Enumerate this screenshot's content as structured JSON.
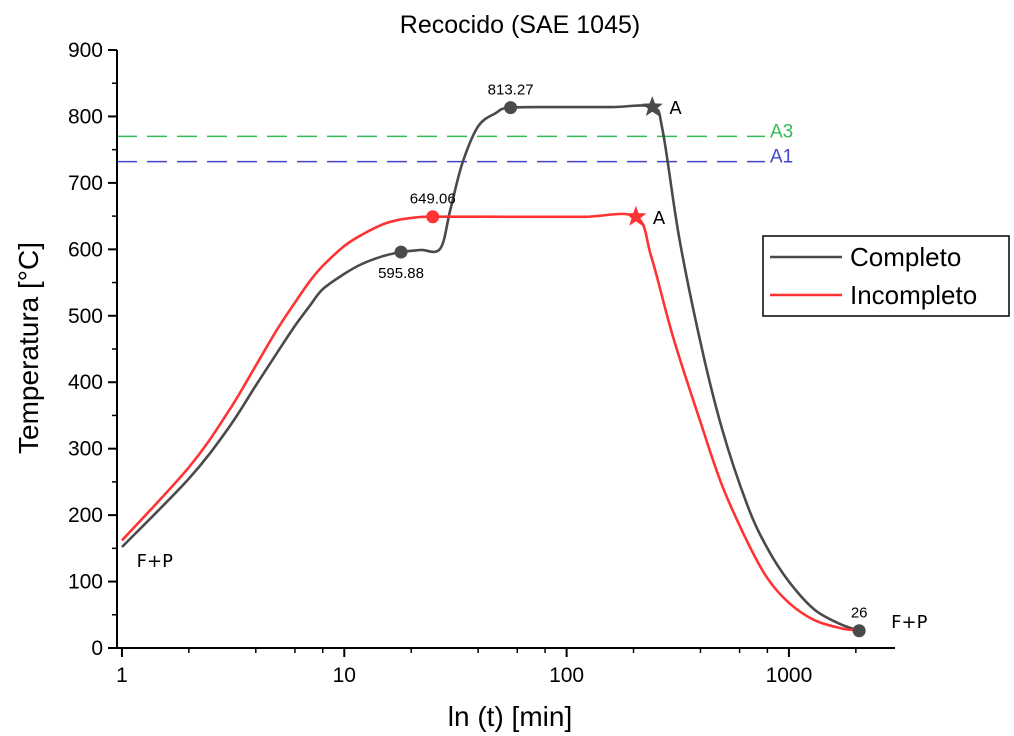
{
  "chart_data": {
    "type": "line",
    "title": "Recocido (SAE 1045)",
    "xlabel": "ln (t) [min]",
    "ylabel": "Temperatura [°C]",
    "xscale": "log",
    "xlim": [
      0.95,
      3000
    ],
    "ylim": [
      0,
      900
    ],
    "xticks": [
      {
        "value": 1,
        "label": "1"
      },
      {
        "value": 10,
        "label": "10"
      },
      {
        "value": 100,
        "label": "100"
      },
      {
        "value": 1000,
        "label": "1000"
      }
    ],
    "yticks": [
      {
        "value": 0,
        "label": "0"
      },
      {
        "value": 100,
        "label": "100"
      },
      {
        "value": 200,
        "label": "200"
      },
      {
        "value": 300,
        "label": "300"
      },
      {
        "value": 400,
        "label": "400"
      },
      {
        "value": 500,
        "label": "500"
      },
      {
        "value": 600,
        "label": "600"
      },
      {
        "value": 700,
        "label": "700"
      },
      {
        "value": 800,
        "label": "800"
      },
      {
        "value": 900,
        "label": "900"
      }
    ],
    "grid": false,
    "legend_position": "right",
    "series": [
      {
        "name": "Completo",
        "color": "#4a4a4a",
        "points": [
          [
            1,
            152
          ],
          [
            2,
            255
          ],
          [
            3,
            330
          ],
          [
            4,
            395
          ],
          [
            5,
            445
          ],
          [
            6,
            485
          ],
          [
            7,
            515
          ],
          [
            8,
            540
          ],
          [
            10,
            563
          ],
          [
            12,
            578
          ],
          [
            15,
            590
          ],
          [
            18,
            595.88
          ],
          [
            22,
            599
          ],
          [
            27,
            601
          ],
          [
            30,
            660
          ],
          [
            34,
            730
          ],
          [
            40,
            785
          ],
          [
            48,
            805
          ],
          [
            56,
            813.27
          ],
          [
            100,
            814
          ],
          [
            160,
            814
          ],
          [
            243,
            814
          ],
          [
            270,
            780
          ],
          [
            320,
            620
          ],
          [
            400,
            460
          ],
          [
            500,
            330
          ],
          [
            650,
            215
          ],
          [
            800,
            150
          ],
          [
            1000,
            100
          ],
          [
            1300,
            58
          ],
          [
            1700,
            36
          ],
          [
            2070,
            26
          ]
        ]
      },
      {
        "name": "Incompleto",
        "color": "#ff3333",
        "points": [
          [
            1,
            162
          ],
          [
            2,
            272
          ],
          [
            3,
            355
          ],
          [
            4,
            425
          ],
          [
            5,
            480
          ],
          [
            6,
            520
          ],
          [
            7,
            552
          ],
          [
            8,
            575
          ],
          [
            10,
            605
          ],
          [
            12,
            622
          ],
          [
            15,
            638
          ],
          [
            18,
            645
          ],
          [
            21,
            648
          ],
          [
            25,
            649.06
          ],
          [
            60,
            649
          ],
          [
            120,
            649
          ],
          [
            205,
            649
          ],
          [
            240,
            590
          ],
          [
            300,
            470
          ],
          [
            400,
            340
          ],
          [
            500,
            245
          ],
          [
            650,
            160
          ],
          [
            800,
            105
          ],
          [
            1000,
            68
          ],
          [
            1300,
            42
          ],
          [
            1700,
            30
          ],
          [
            2070,
            26
          ]
        ]
      }
    ],
    "reference_lines": [
      {
        "label": "A3",
        "y": 770,
        "color": "#33bb55"
      },
      {
        "label": "A1",
        "y": 732,
        "color": "#4444cc"
      }
    ],
    "markers": [
      {
        "series": "Completo",
        "shape": "circle",
        "x": 18,
        "y": 595.88,
        "label": "595.88",
        "label_pos": "below",
        "color": "#4a4a4a"
      },
      {
        "series": "Completo",
        "shape": "circle",
        "x": 56,
        "y": 813.27,
        "label": "813.27",
        "label_pos": "above",
        "color": "#4a4a4a"
      },
      {
        "series": "Completo",
        "shape": "star",
        "x": 243,
        "y": 814,
        "label": "A",
        "label_pos": "right",
        "color": "#4a4a4a"
      },
      {
        "series": "Incompleto",
        "shape": "circle",
        "x": 25,
        "y": 649.06,
        "label": "649.06",
        "label_pos": "above",
        "color": "#ff3333"
      },
      {
        "series": "Incompleto",
        "shape": "star",
        "x": 205,
        "y": 649,
        "label": "A",
        "label_pos": "right",
        "color": "#ff3333"
      },
      {
        "series": "Completo",
        "shape": "circle",
        "x": 2070,
        "y": 26,
        "label": "26",
        "label_pos": "above",
        "color": "#4a4a4a"
      }
    ],
    "annotations": [
      {
        "text": "F+P",
        "x": 1.05,
        "y": 110
      },
      {
        "text": "F+P",
        "x": 2600,
        "y": 18
      }
    ]
  }
}
